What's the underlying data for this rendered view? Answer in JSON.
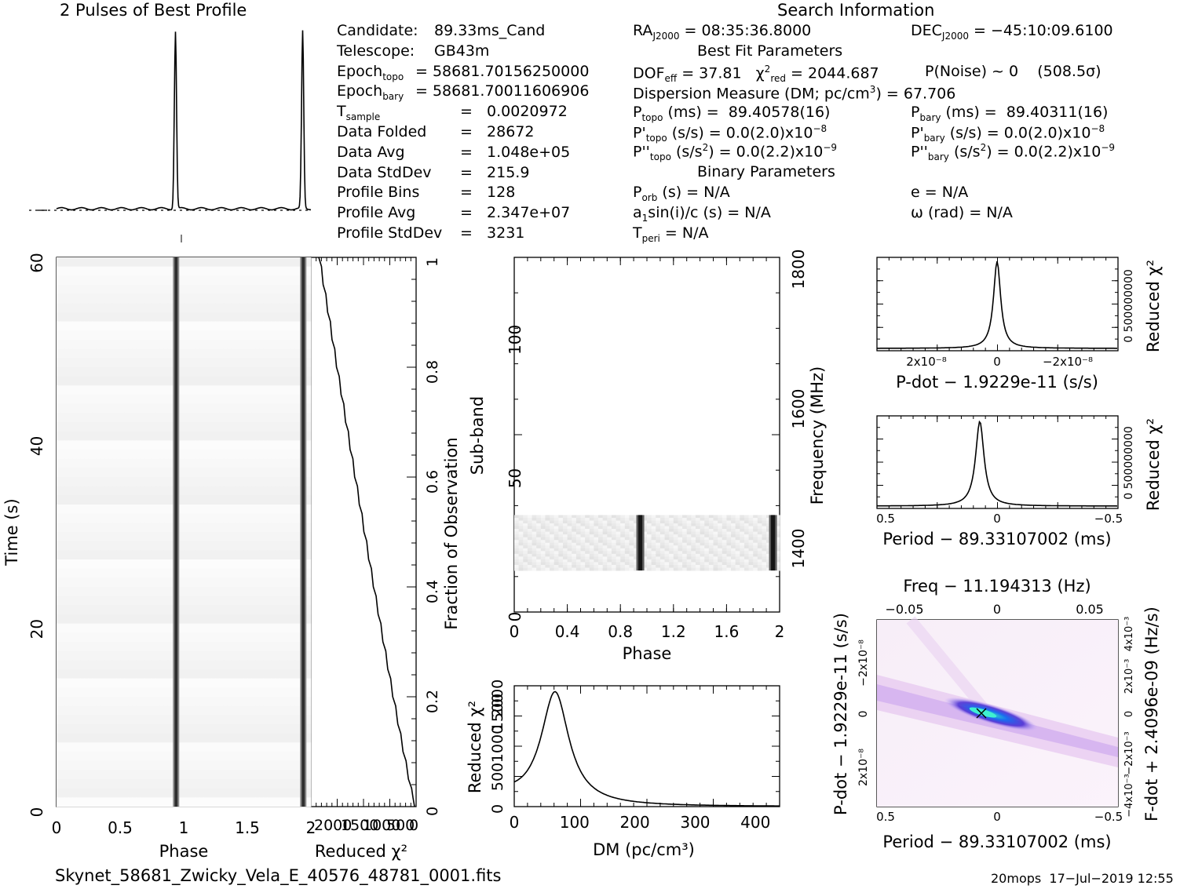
{
  "headers": {
    "profile_title": "2 Pulses of Best Profile",
    "search_title": "Search Information",
    "best_fit": "Best Fit Parameters",
    "binary": "Binary Parameters"
  },
  "info_left": [
    {
      "k": "Candidate:",
      "v": "89.33ms_Cand"
    },
    {
      "k": "Telescope:",
      "v": "GB43m"
    },
    {
      "k": "Epoch",
      "sub": "topo",
      "v": "= 58681.70156250000"
    },
    {
      "k": "Epoch",
      "sub": "bary",
      "v": "= 58681.70011606906"
    },
    {
      "k": "T",
      "sub": "sample",
      "v": "=   0.0020972"
    },
    {
      "k": "Data Folded",
      "v": "=   28672"
    },
    {
      "k": "Data Avg",
      "v": "=   1.048e+05"
    },
    {
      "k": "Data StdDev",
      "v": "=   215.9"
    },
    {
      "k": "Profile Bins",
      "v": "=   128"
    },
    {
      "k": "Profile Avg",
      "v": "=   2.347e+07"
    },
    {
      "k": "Profile StdDev",
      "v": "=   3231"
    }
  ],
  "info_mid": {
    "ra": "RA",
    "ra_sub": "J2000",
    "ra_val": " = 08:35:36.8000",
    "dec": "DEC",
    "dec_sub": "J2000",
    "dec_val": " = −45:10:09.6100",
    "dof": "DOF",
    "dof_sub": "eff",
    "dof_val": " = 37.81   χ",
    "chi_sup": "2",
    "chi_sub": "red",
    "chi_val": " = 2044.687",
    "pnoise": "P(Noise) ~ 0    (508.5σ)",
    "dm_line": "Dispersion Measure (DM; pc/cm",
    "dm_sup": "3",
    "dm_val": ") = 67.706",
    "ptopo": "P",
    "ptopo_sub": "topo",
    "ptopo_val": " (ms) =  89.40578(16)",
    "pbary": "P",
    "pbary_sub": "bary",
    "pbary_val": " (ms) =  89.40311(16)",
    "pdtopo": "P'",
    "pdtopo_sub": "topo",
    "pdtopo_val": " (s/s) = 0.0(2.0)x10",
    "pdtopo_exp": "−8",
    "pdbary": "P'",
    "pdbary_sub": "bary",
    "pdbary_val": " (s/s) = 0.0(2.0)x10",
    "pdbary_exp": "−8",
    "pddtopo": "P''",
    "pddtopo_sub": "topo",
    "pddtopo_val": " (s/s",
    "pddtopo_sup": "2",
    "pddtopo_rest": ") = 0.0(2.2)x10",
    "pddtopo_exp": "−9",
    "pddbary": "P''",
    "pddbary_sub": "bary",
    "pddbary_val": " (s/s",
    "pddbary_sup": "2",
    "pddbary_rest": ") = 0.0(2.2)x10",
    "pddbary_exp": "−9",
    "porb": "P",
    "porb_sub": "orb",
    "porb_val": " (s) = N/A",
    "e_val": "e = N/A",
    "a1": "a",
    "a1_sub": "1",
    "a1_val": "sin(i)/c (s) = N/A",
    "omega": "ω (rad) = N/A",
    "tperi": "T",
    "tperi_sub": "peri",
    "tperi_val": " = N/A"
  },
  "footer": {
    "filename": "Skynet_58681_Zwicky_Vela_E_40576_48781_0001.fits",
    "stamp": "20mops  17−Jul−2019 12:55"
  },
  "chart_data": [
    {
      "type": "line",
      "name": "profile",
      "title": "2 Pulses of Best Profile",
      "x": [
        0,
        0.92,
        0.935,
        0.95,
        1.0,
        1.92,
        1.935,
        1.95,
        2.0
      ],
      "y": [
        0.03,
        0.03,
        1.0,
        0.03,
        0.03,
        0.03,
        1.0,
        0.03,
        0.03
      ]
    },
    {
      "type": "heatmap",
      "name": "time-phase",
      "xlabel": "Phase",
      "ylabel": "Time (s)",
      "xlim": [
        0,
        2
      ],
      "ylim": [
        0,
        60
      ],
      "xticks": [
        "0",
        "0.5",
        "1",
        "1.5",
        "2"
      ],
      "yticks": [
        "0",
        "20",
        "40",
        "60"
      ],
      "pulse_phases": [
        0.94,
        1.94
      ]
    },
    {
      "type": "line",
      "name": "reduced-chi2-vs-fraction",
      "xlabel": "Reduced χ²",
      "ylabel": "Fraction of Observation",
      "ylim": [
        0,
        1
      ],
      "yticks": [
        "0",
        "0.2",
        "0.4",
        "0.6",
        "0.8",
        "1"
      ],
      "xticks": [
        "2000",
        "1500",
        "1000",
        "500",
        "0"
      ]
    },
    {
      "type": "heatmap",
      "name": "subband-phase",
      "xlabel": "Phase",
      "ylabel": "Sub-band",
      "y2label": "Frequency (MHz)",
      "xlim": [
        0,
        2
      ],
      "ylim": [
        0,
        128
      ],
      "xticks": [
        "0",
        "0.4",
        "0.8",
        "1.2",
        "1.6",
        "2"
      ],
      "yticks": [
        "0",
        "50",
        "100"
      ],
      "y2ticks": [
        "1400",
        "1600",
        "1800"
      ],
      "active_subbands": [
        15,
        35
      ],
      "pulse_phases": [
        0.95,
        1.95
      ]
    },
    {
      "type": "line",
      "name": "dm-chi2",
      "xlabel": "DM (pc/cm³)",
      "ylabel": "Reduced χ²",
      "xlim": [
        0,
        440
      ],
      "ylim": [
        0,
        2200
      ],
      "xticks": [
        "0",
        "100",
        "200",
        "300",
        "400"
      ],
      "yticks": [
        "0",
        "500",
        "1000",
        "1500",
        "2000"
      ],
      "peak_dm": 67.7,
      "peak_value": 2044.7
    },
    {
      "type": "line",
      "name": "pdot-chi2",
      "xlabel": "P-dot − 1.9229e-11 (s/s)",
      "ylabel": "Reduced χ²",
      "xticks": [
        "2x10⁻⁸",
        "0",
        "−2x10⁻⁸"
      ],
      "yticks": [
        "0",
        "500",
        "1000",
        "1500",
        "2000"
      ]
    },
    {
      "type": "line",
      "name": "period-chi2",
      "xlabel": "Period − 89.33107002 (ms)",
      "ylabel": "Reduced χ²",
      "xticks": [
        "0.5",
        "0",
        "−0.5"
      ],
      "yticks": [
        "0",
        "500",
        "1000",
        "1500",
        "2000"
      ]
    },
    {
      "type": "heatmap",
      "name": "period-pdot",
      "title": "Freq − 11.194313 (Hz)",
      "xlabel": "Period − 89.33107002 (ms)",
      "ylabel": "P-dot − 1.9229e-11 (s/s)",
      "y2label": "F-dot + 2.4096e-09 (Hz/s)",
      "xticks": [
        "0.5",
        "0",
        "−0.5"
      ],
      "x2ticks": [
        "−0.05",
        "0",
        "0.05"
      ],
      "yticks": [
        "−2x10⁻⁸",
        "0",
        "2x10⁻⁸"
      ],
      "y2ticks": [
        "4x10⁻³",
        "2x10⁻³",
        "0",
        "−2x10⁻³",
        "−4x10⁻³"
      ]
    }
  ]
}
